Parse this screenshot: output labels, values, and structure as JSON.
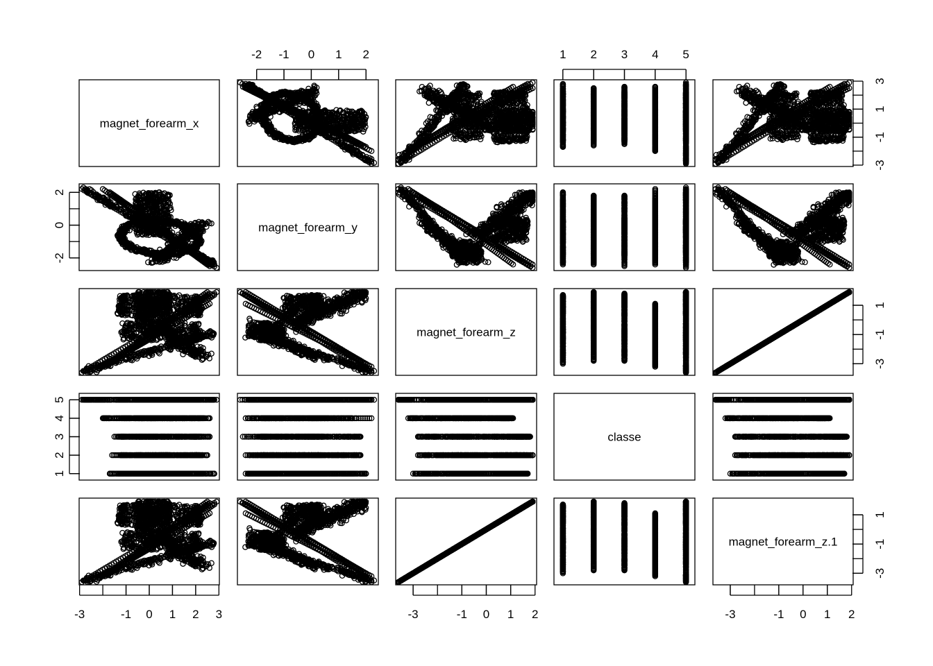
{
  "chart_data": {
    "type": "scatter",
    "subtype": "pairs-scatterplot-matrix",
    "title": "",
    "variables": [
      {
        "name": "magnet_forearm_x",
        "range": [
          -2.9,
          2.9
        ],
        "ticks": [
          -3,
          -1,
          0,
          1,
          2,
          3
        ]
      },
      {
        "name": "magnet_forearm_y",
        "range": [
          -2.6,
          2.35
        ],
        "ticks": [
          -2,
          -1,
          0,
          1,
          2
        ]
      },
      {
        "name": "magnet_forearm_z",
        "range": [
          -3.6,
          1.95
        ],
        "ticks": [
          -3,
          -1,
          0,
          1,
          2
        ]
      },
      {
        "name": "classe",
        "range": [
          0.8,
          5.2
        ],
        "ticks": [
          1,
          2,
          3,
          4,
          5
        ]
      },
      {
        "name": "magnet_forearm_z.1",
        "range": [
          -3.6,
          1.95
        ],
        "ticks": [
          -3,
          -1,
          0,
          1,
          2
        ]
      }
    ],
    "axes": {
      "top": [
        {
          "variable": 1,
          "labels": [
            "-2",
            "-1",
            "0",
            "1",
            "2"
          ]
        },
        {
          "variable": 3,
          "labels": [
            "1",
            "2",
            "3",
            "4",
            "5"
          ]
        }
      ],
      "bottom": [
        {
          "variable": 0,
          "labels": [
            "-3",
            "-1",
            "0",
            "1",
            "2",
            "3"
          ]
        },
        {
          "variable": 2,
          "labels": [
            "-3",
            "-1",
            "0",
            "1",
            "2"
          ]
        },
        {
          "variable": 4,
          "labels": [
            "-3",
            "-1",
            "0",
            "1",
            "2"
          ]
        }
      ],
      "left": [
        {
          "variable": 1,
          "labels": [
            "-2",
            "0",
            "2"
          ]
        },
        {
          "variable": 3,
          "labels": [
            "1",
            "2",
            "3",
            "4",
            "5"
          ]
        }
      ],
      "right": [
        {
          "variable": 0,
          "labels": [
            "-3",
            "-1",
            "1",
            "3"
          ]
        },
        {
          "variable": 2,
          "labels": [
            "-3",
            "-1",
            "1"
          ]
        },
        {
          "variable": 4,
          "labels": [
            "-3",
            "-1",
            "1"
          ]
        }
      ]
    },
    "relationships": {
      "x_vs_y": "elliptical ring centered near (0.4, -0.6) with a tail from (-2.8, 2.2) to (2.8, -2.4)",
      "y_vs_z": "V-shaped: upper branch z rises as y goes from -2.3 to 2.1, lower branch z falls",
      "x_vs_z": "dense blob near x=-0.5..0.8, z=0.5..1.9 plus a rising arm from (-2.8,-3.5) to (2.8,-1)",
      "z_vs_z1": "identical variables, perfect diagonal line",
      "class_ranges": {
        "1": {
          "x": [
            -1.7,
            2.8
          ],
          "y": [
            -2.4,
            2.0
          ],
          "z": [
            -3.0,
            1.7
          ]
        },
        "2": {
          "x": [
            -1.6,
            2.5
          ],
          "y": [
            -2.4,
            1.8
          ],
          "z": [
            -2.8,
            1.9
          ]
        },
        "3": {
          "x": [
            -1.5,
            2.6
          ],
          "y": [
            -2.5,
            1.8
          ],
          "z": [
            -2.8,
            1.8
          ]
        },
        "4": {
          "x": [
            -2.0,
            2.6
          ],
          "y": [
            -2.4,
            2.2
          ],
          "z": [
            -3.2,
            1.1
          ]
        },
        "5": {
          "x": [
            -2.9,
            2.9
          ],
          "y": [
            -2.6,
            2.2
          ],
          "z": [
            -3.6,
            1.9
          ]
        }
      }
    },
    "grid": false,
    "legend": "none",
    "colors": {
      "points": "#000000",
      "frame": "#000000",
      "background": "#ffffff"
    }
  }
}
